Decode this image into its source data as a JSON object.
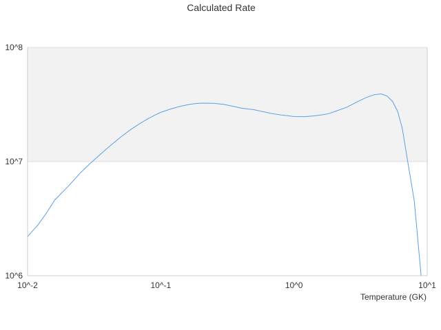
{
  "chart_data": {
    "type": "line",
    "title": "Calculated Rate",
    "xlabel": "Temperature (GK)",
    "ylabel": "",
    "x_scale": "log",
    "y_scale": "log",
    "xlim": [
      0.01,
      10
    ],
    "ylim": [
      1000000,
      100000000
    ],
    "x_tick_labels": [
      "10^-2",
      "10^-1",
      "10^0",
      "10^1"
    ],
    "y_tick_labels": [
      "10^6",
      "10^7",
      "10^8"
    ],
    "grid": true,
    "legend": "none",
    "colors": {
      "line": "#5b9fe6",
      "band": "#f2f2f2",
      "grid": "#dddddd",
      "axis": "#cccccc"
    },
    "series": [
      {
        "x": [
          0.01,
          0.012,
          0.014,
          0.016,
          0.018,
          0.02,
          0.025,
          0.03,
          0.035,
          0.04,
          0.045,
          0.05,
          0.06,
          0.07,
          0.08,
          0.09,
          0.1,
          0.12,
          0.14,
          0.16,
          0.18,
          0.2,
          0.25,
          0.3,
          0.35,
          0.4,
          0.45,
          0.5,
          0.6,
          0.7,
          0.8,
          0.9,
          1.0,
          1.2,
          1.4,
          1.6,
          1.8,
          2.0,
          2.5,
          3.0,
          3.5,
          4.0,
          4.5,
          5.0,
          5.5,
          6.0,
          6.5,
          7.0,
          8.0,
          9.0
        ],
        "values": [
          2200000,
          2800000,
          3600000,
          4600000,
          5300000,
          6000000,
          8000000,
          9800000,
          11500000,
          13200000,
          14800000,
          16400000,
          19200000,
          21600000,
          23700000,
          25500000,
          27000000,
          29000000,
          30500000,
          31500000,
          32200000,
          32500000,
          32400000,
          31600000,
          30500000,
          29400000,
          28900000,
          28500000,
          27200000,
          26200000,
          25600000,
          25200000,
          24800000,
          24700000,
          25100000,
          25600000,
          26200000,
          27300000,
          30000000,
          33500000,
          36500000,
          38500000,
          39200000,
          37500000,
          33500000,
          27500000,
          19500000,
          11500000,
          4500000,
          1000000
        ]
      }
    ]
  }
}
